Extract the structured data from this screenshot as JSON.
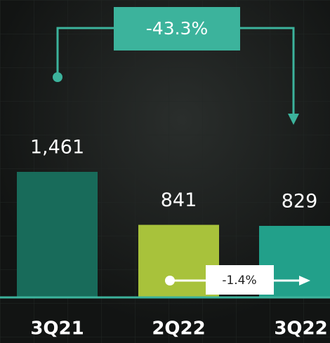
{
  "chart_data": {
    "type": "bar",
    "categories": [
      "3Q21",
      "2Q22",
      "3Q22"
    ],
    "values": [
      1461,
      841,
      829
    ],
    "value_labels": [
      "1,461",
      "841",
      "829"
    ],
    "colors": [
      "#186b5a",
      "#a8c23b",
      "#22a08a"
    ],
    "annotations": [
      "-43.3%",
      "-1.4%"
    ]
  }
}
